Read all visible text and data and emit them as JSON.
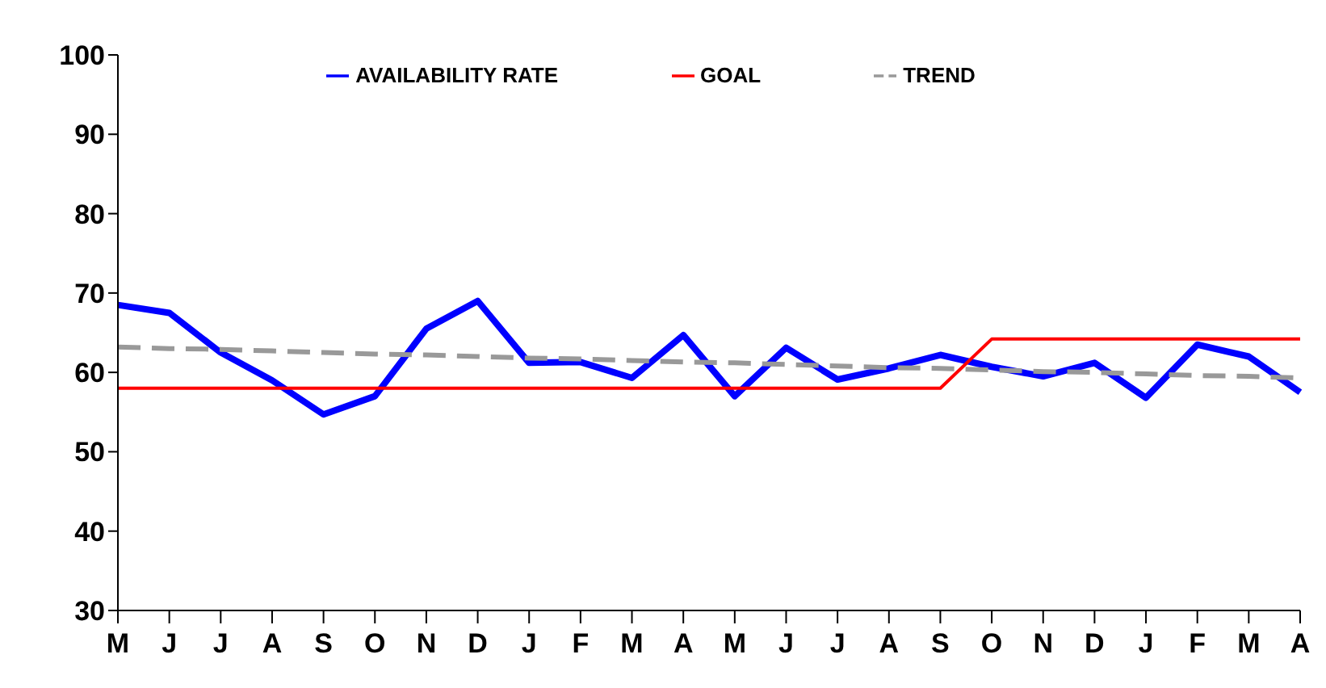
{
  "chart_data": {
    "type": "line",
    "categories": [
      "M",
      "J",
      "J",
      "A",
      "S",
      "O",
      "N",
      "D",
      "J",
      "F",
      "M",
      "A",
      "M",
      "J",
      "J",
      "A",
      "S",
      "O",
      "N",
      "D",
      "J",
      "F",
      "M",
      "A"
    ],
    "series": [
      {
        "name": "AVAILABILITY RATE",
        "color": "#0000ff",
        "line_style": "solid",
        "values": [
          68.5,
          67.5,
          62.5,
          59,
          54.7,
          57,
          65.5,
          69,
          61.2,
          61.3,
          59.3,
          64.7,
          57,
          63.1,
          59.1,
          60.5,
          62.2,
          60.7,
          59.5,
          61.2,
          56.8,
          63.5,
          62,
          57.5
        ]
      },
      {
        "name": "GOAL",
        "color": "#ff0000",
        "line_style": "solid",
        "values": [
          58,
          58,
          58,
          58,
          58,
          58,
          58,
          58,
          58,
          58,
          58,
          58,
          58,
          58,
          58,
          58,
          58,
          64.2,
          64.2,
          64.2,
          64.2,
          64.2,
          64.2,
          64.2
        ]
      },
      {
        "name": "TREND",
        "color": "#999999",
        "line_style": "dashed",
        "values": [
          63.2,
          63,
          62.9,
          62.7,
          62.5,
          62.3,
          62.2,
          62,
          61.8,
          61.7,
          61.5,
          61.3,
          61.2,
          61,
          60.8,
          60.6,
          60.5,
          60.3,
          60.1,
          60,
          59.8,
          59.6,
          59.5,
          59.3
        ]
      }
    ],
    "ylim": [
      30,
      100
    ],
    "yticks": [
      30,
      40,
      50,
      60,
      70,
      80,
      90,
      100
    ],
    "legend": "top",
    "marker": "none"
  }
}
